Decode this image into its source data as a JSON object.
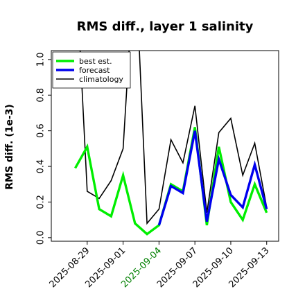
{
  "chart_data": {
    "type": "line",
    "title": "RMS diff., layer 1 salinity",
    "xlabel": "",
    "ylabel": "RMS diff. (1e-3)",
    "ylim": [
      -0.02,
      1.05
    ],
    "yticks": [
      0.0,
      0.2,
      0.4,
      0.6,
      0.8,
      1.0
    ],
    "ytick_labels": [
      "0.0",
      "0.2",
      "0.4",
      "0.6",
      "0.8",
      "1.0"
    ],
    "xlim": [
      "2025-08-26",
      "2025-09-14"
    ],
    "xticks": [
      "2025-08-29",
      "2025-09-01",
      "2025-09-04",
      "2025-09-07",
      "2025-09-10",
      "2025-09-13"
    ],
    "xtick_labels": [
      "2025-08-29",
      "2025-09-01",
      "2025-09-04",
      "2025-09-07",
      "2025-09-10",
      "2025-09-13"
    ],
    "highlight_xtick": "2025-09-04",
    "highlight_color": "#008000",
    "grid": false,
    "legend_position": "top-left",
    "series": [
      {
        "name": "best est.",
        "color": "#00ee00",
        "x": [
          "2025-08-28",
          "2025-08-29",
          "2025-08-30",
          "2025-08-31",
          "2025-09-01",
          "2025-09-02",
          "2025-09-03",
          "2025-09-04",
          "2025-09-05",
          "2025-09-06",
          "2025-09-07",
          "2025-09-08",
          "2025-09-09",
          "2025-09-10",
          "2025-09-11",
          "2025-09-12",
          "2025-09-13"
        ],
        "y": [
          0.39,
          0.51,
          0.16,
          0.12,
          0.35,
          0.08,
          0.02,
          0.07,
          0.3,
          0.26,
          0.62,
          0.07,
          0.51,
          0.2,
          0.1,
          0.3,
          0.14
        ]
      },
      {
        "name": "forecast",
        "color": "#0000ee",
        "x": [
          "2025-09-04",
          "2025-09-05",
          "2025-09-06",
          "2025-09-07",
          "2025-09-08",
          "2025-09-09",
          "2025-09-10",
          "2025-09-11",
          "2025-09-12",
          "2025-09-13"
        ],
        "y": [
          0.07,
          0.29,
          0.25,
          0.6,
          0.09,
          0.44,
          0.24,
          0.17,
          0.41,
          0.16
        ]
      },
      {
        "name": "climatology",
        "color": "#000000",
        "x": [
          "2025-08-28",
          "2025-08-29",
          "2025-08-30",
          "2025-08-31",
          "2025-09-01",
          "2025-09-02",
          "2025-09-03",
          "2025-09-04",
          "2025-09-05",
          "2025-09-06",
          "2025-09-07",
          "2025-09-08",
          "2025-09-09",
          "2025-09-10",
          "2025-09-11",
          "2025-09-12",
          "2025-09-13"
        ],
        "y": [
          1.6,
          0.26,
          0.22,
          0.32,
          0.5,
          1.6,
          0.08,
          0.16,
          0.55,
          0.42,
          0.74,
          0.14,
          0.59,
          0.67,
          0.35,
          0.53,
          0.17
        ]
      }
    ]
  }
}
